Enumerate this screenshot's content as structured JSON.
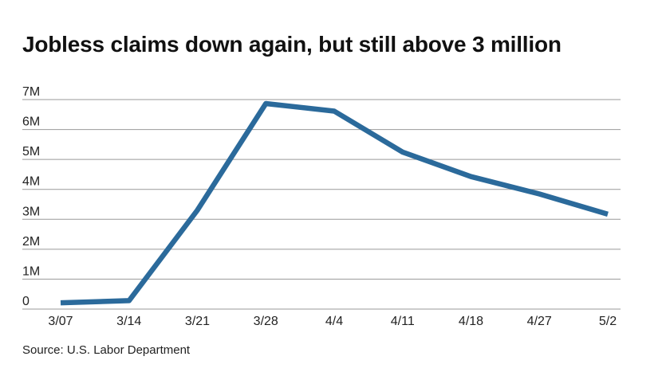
{
  "title": "Jobless claims down again, but still above 3 million",
  "source": "Source: U.S. Labor Department",
  "chart_data": {
    "type": "line",
    "title": "Jobless claims down again, but still above 3 million",
    "xlabel": "",
    "ylabel": "",
    "categories": [
      "3/07",
      "3/14",
      "3/21",
      "3/28",
      "4/4",
      "4/11",
      "4/18",
      "4/27",
      "5/2"
    ],
    "series": [
      {
        "values": [
          211000,
          282000,
          3307000,
          6867000,
          6615000,
          5245000,
          4427000,
          3846000,
          3169000
        ]
      }
    ],
    "ylim": [
      0,
      7000000
    ],
    "yticks": [
      {
        "value": 0,
        "label": "0"
      },
      {
        "value": 1000000,
        "label": "1M"
      },
      {
        "value": 2000000,
        "label": "2M"
      },
      {
        "value": 3000000,
        "label": "3M"
      },
      {
        "value": 4000000,
        "label": "4M"
      },
      {
        "value": 5000000,
        "label": "5M"
      },
      {
        "value": 6000000,
        "label": "6M"
      },
      {
        "value": 7000000,
        "label": "7M"
      }
    ],
    "grid": true,
    "line_color": "#2b6a9b",
    "grid_color": "#9a9a9a"
  }
}
